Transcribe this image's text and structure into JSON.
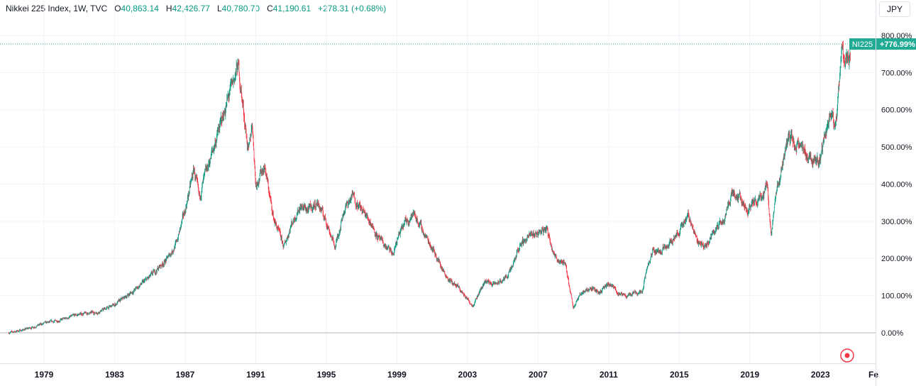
{
  "header": {
    "title": "Nikkei 225 Index, 1W, TVC",
    "o_label": "O",
    "o_value": "40,863.14",
    "h_label": "H",
    "h_value": "42,426.77",
    "l_label": "L",
    "l_value": "40,780.70",
    "c_label": "C",
    "c_value": "41,190.61",
    "change": "+278.31 (+0.68%)"
  },
  "currency_button": "JPY",
  "colors": {
    "up": "#089981",
    "down": "#f23645",
    "grid": "#f0f3fa",
    "axis_text": "#131722",
    "label_bg": "#22ab94",
    "baseline": "#b2b5be",
    "price_line": "#22ab94",
    "record": "#f23645"
  },
  "icons": {
    "record": "record-icon"
  },
  "chart_data": {
    "type": "candlestick",
    "symbol_label": "NI225",
    "last_value_label": "+776.99%",
    "last_value": 776.99,
    "y_scale": "percent",
    "ylim": [
      -65,
      810
    ],
    "xlim": [
      1976.8,
      2025.3
    ],
    "y_ticks": [
      800,
      700,
      600,
      500,
      400,
      300,
      200,
      100,
      0
    ],
    "y_tick_labels": [
      "800.00%",
      "700.00%",
      "600.00%",
      "500.00%",
      "400.00%",
      "300.00%",
      "200.00%",
      "100.00%",
      "0.00%"
    ],
    "x_ticks": [
      1979,
      1983,
      1987,
      1991,
      1995,
      1999,
      2003,
      2007,
      2011,
      2015,
      2019,
      2023
    ],
    "x_tick_labels": [
      "1979",
      "1983",
      "1987",
      "1991",
      "1995",
      "1999",
      "2003",
      "2007",
      "2011",
      "2015",
      "2019",
      "2023"
    ],
    "x_edge_label": "Fe",
    "grid": true,
    "series": [
      {
        "points": [
          [
            1977.0,
            0
          ],
          [
            1978.0,
            10
          ],
          [
            1979.0,
            25
          ],
          [
            1980.0,
            35
          ],
          [
            1981.0,
            50
          ],
          [
            1982.0,
            55
          ],
          [
            1983.0,
            75
          ],
          [
            1984.0,
            110
          ],
          [
            1985.0,
            150
          ],
          [
            1986.0,
            200
          ],
          [
            1986.5,
            240
          ],
          [
            1987.0,
            330
          ],
          [
            1987.5,
            440
          ],
          [
            1987.8,
            360
          ],
          [
            1988.0,
            400
          ],
          [
            1988.5,
            480
          ],
          [
            1989.0,
            560
          ],
          [
            1989.5,
            640
          ],
          [
            1990.0,
            720
          ],
          [
            1990.3,
            600
          ],
          [
            1990.6,
            480
          ],
          [
            1990.8,
            570
          ],
          [
            1991.0,
            400
          ],
          [
            1991.5,
            450
          ],
          [
            1992.0,
            310
          ],
          [
            1992.6,
            230
          ],
          [
            1993.0,
            290
          ],
          [
            1993.5,
            340
          ],
          [
            1994.0,
            330
          ],
          [
            1994.5,
            350
          ],
          [
            1995.0,
            300
          ],
          [
            1995.5,
            230
          ],
          [
            1996.0,
            330
          ],
          [
            1996.5,
            370
          ],
          [
            1997.0,
            330
          ],
          [
            1997.5,
            300
          ],
          [
            1998.0,
            250
          ],
          [
            1998.8,
            210
          ],
          [
            1999.0,
            250
          ],
          [
            1999.5,
            300
          ],
          [
            2000.0,
            320
          ],
          [
            2000.5,
            270
          ],
          [
            2001.0,
            230
          ],
          [
            2001.6,
            170
          ],
          [
            2002.0,
            140
          ],
          [
            2002.5,
            120
          ],
          [
            2003.0,
            90
          ],
          [
            2003.3,
            75
          ],
          [
            2004.0,
            140
          ],
          [
            2004.5,
            130
          ],
          [
            2005.0,
            140
          ],
          [
            2005.5,
            170
          ],
          [
            2006.0,
            240
          ],
          [
            2006.5,
            260
          ],
          [
            2007.0,
            270
          ],
          [
            2007.5,
            280
          ],
          [
            2008.0,
            200
          ],
          [
            2008.5,
            190
          ],
          [
            2008.8,
            120
          ],
          [
            2009.0,
            70
          ],
          [
            2009.5,
            110
          ],
          [
            2010.0,
            120
          ],
          [
            2010.5,
            110
          ],
          [
            2011.0,
            130
          ],
          [
            2011.3,
            120
          ],
          [
            2011.7,
            100
          ],
          [
            2012.0,
            100
          ],
          [
            2012.5,
            110
          ],
          [
            2012.9,
            110
          ],
          [
            2013.0,
            140
          ],
          [
            2013.5,
            220
          ],
          [
            2014.0,
            220
          ],
          [
            2014.5,
            250
          ],
          [
            2015.0,
            270
          ],
          [
            2015.5,
            320
          ],
          [
            2016.0,
            250
          ],
          [
            2016.5,
            230
          ],
          [
            2017.0,
            280
          ],
          [
            2017.5,
            300
          ],
          [
            2018.0,
            380
          ],
          [
            2018.5,
            360
          ],
          [
            2018.9,
            320
          ],
          [
            2019.0,
            340
          ],
          [
            2019.5,
            360
          ],
          [
            2020.0,
            400
          ],
          [
            2020.2,
            265
          ],
          [
            2020.5,
            370
          ],
          [
            2021.0,
            490
          ],
          [
            2021.2,
            530
          ],
          [
            2021.5,
            510
          ],
          [
            2022.0,
            490
          ],
          [
            2022.5,
            470
          ],
          [
            2023.0,
            470
          ],
          [
            2023.5,
            580
          ],
          [
            2023.9,
            570
          ],
          [
            2024.0,
            620
          ],
          [
            2024.2,
            760
          ],
          [
            2024.5,
            720
          ],
          [
            2024.7,
            740
          ]
        ]
      }
    ]
  }
}
